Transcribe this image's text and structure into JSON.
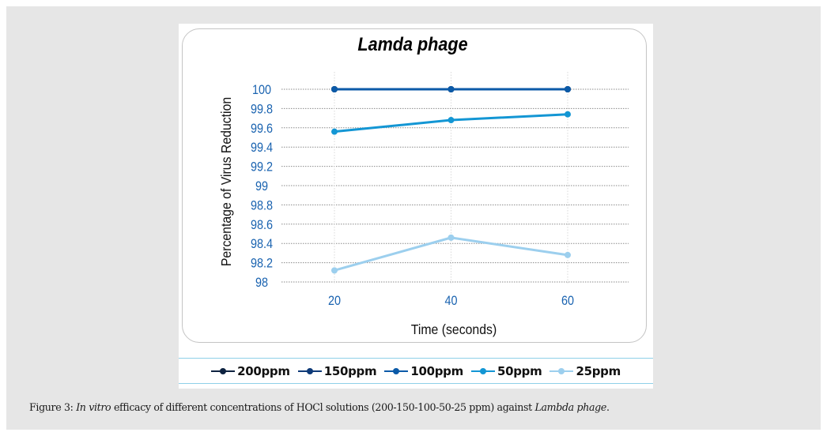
{
  "chart_data": {
    "type": "line",
    "title": "Lamda phage",
    "xlabel": "Time (seconds)",
    "ylabel": "Percentage of Virus Reduction",
    "x": [
      20,
      40,
      60
    ],
    "x_tick_labels": [
      "20",
      "40",
      "60"
    ],
    "ylim": [
      98,
      100
    ],
    "y_ticks": [
      98,
      98.2,
      98.4,
      98.6,
      98.8,
      99,
      99.2,
      99.4,
      99.6,
      99.8,
      100
    ],
    "y_tick_labels": [
      "98",
      "98.2",
      "98.4",
      "98.6",
      "98.8",
      "99",
      "99.2",
      "99.4",
      "99.6",
      "99.8",
      "100"
    ],
    "grid": true,
    "legend_position": "bottom",
    "series": [
      {
        "name": "200ppm",
        "color": "#0d2240",
        "values": [
          100,
          100,
          100
        ]
      },
      {
        "name": "150ppm",
        "color": "#0e3a78",
        "values": [
          100,
          100,
          100
        ]
      },
      {
        "name": "100ppm",
        "color": "#0b5aa8",
        "values": [
          100,
          100,
          100
        ]
      },
      {
        "name": "50ppm",
        "color": "#1396d4",
        "values": [
          99.56,
          99.68,
          99.74
        ]
      },
      {
        "name": "25ppm",
        "color": "#9ccfee",
        "values": [
          98.12,
          98.46,
          98.28
        ]
      }
    ]
  },
  "colors": {
    "tick_label": "#1a63b0",
    "axis_title": "#111111"
  },
  "caption": {
    "figure_label": "Figure 3:",
    "italic_1": "In vitro",
    "text_1": " efficacy of different concentrations of HOCl solutions (200-150-100-50-25 ppm) against ",
    "italic_2": "Lambda phage",
    "text_2": "."
  }
}
